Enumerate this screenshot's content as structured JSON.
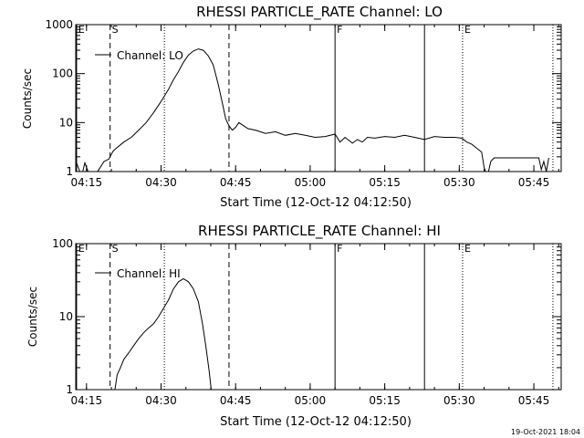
{
  "chart_data": [
    {
      "type": "line",
      "title": "RHESSI PARTICLE_RATE Channel: LO",
      "xlabel": "Start Time (12-Oct-12 04:12:50)",
      "ylabel": "Counts/sec",
      "yscale": "log",
      "xlim": [
        "04:12:50",
        "05:50:30"
      ],
      "ylim": [
        1,
        1000
      ],
      "x_ticks": [
        "04:15",
        "04:30",
        "04:45",
        "05:00",
        "05:15",
        "05:30",
        "05:45"
      ],
      "y_ticks": [
        "1",
        "10",
        "100",
        "1000"
      ],
      "legend": "Channel: LO",
      "legend_position": "top-left",
      "grid": false,
      "series": [
        {
          "color": "#000000",
          "points": [
            [
              "04:13:00",
              1.5
            ],
            [
              "04:14:00",
              0.8
            ],
            [
              "04:14:40",
              1.5
            ],
            [
              "04:15:30",
              0.9
            ],
            [
              "04:16:30",
              0.8
            ],
            [
              "04:17:30",
              1.1
            ],
            [
              "04:18:30",
              1.6
            ],
            [
              "04:19:30",
              1.8
            ],
            [
              "04:20:20",
              2.6
            ],
            [
              "04:21:00",
              3.0
            ],
            [
              "04:22:30",
              4.0
            ],
            [
              "04:24:00",
              5.0
            ],
            [
              "04:25:30",
              7.0
            ],
            [
              "04:27:00",
              10
            ],
            [
              "04:28:30",
              16
            ],
            [
              "04:30:00",
              27
            ],
            [
              "04:31:30",
              48
            ],
            [
              "04:32:30",
              75
            ],
            [
              "04:33:30",
              110
            ],
            [
              "04:34:30",
              170
            ],
            [
              "04:35:30",
              240
            ],
            [
              "04:36:30",
              290
            ],
            [
              "04:37:30",
              320
            ],
            [
              "04:38:30",
              300
            ],
            [
              "04:39:30",
              230
            ],
            [
              "04:40:30",
              150
            ],
            [
              "04:41:30",
              60
            ],
            [
              "04:42:20",
              25
            ],
            [
              "04:43:00",
              12
            ],
            [
              "04:43:40",
              8.5
            ],
            [
              "04:44:20",
              7.0
            ],
            [
              "04:45:00",
              8.0
            ],
            [
              "04:45:40",
              10
            ],
            [
              "04:46:20",
              9.0
            ],
            [
              "04:47:30",
              7.5
            ],
            [
              "04:49:00",
              7.0
            ],
            [
              "04:51:00",
              6.0
            ],
            [
              "04:53:00",
              6.5
            ],
            [
              "04:55:00",
              5.5
            ],
            [
              "04:57:00",
              6.0
            ],
            [
              "04:59:00",
              5.5
            ],
            [
              "05:01:00",
              5.0
            ],
            [
              "05:03:00",
              5.2
            ],
            [
              "05:05:00",
              5.8
            ],
            [
              "05:06:00",
              4.0
            ],
            [
              "05:07:00",
              5.0
            ],
            [
              "05:08:30",
              3.8
            ],
            [
              "05:09:30",
              4.5
            ],
            [
              "05:10:30",
              4.0
            ],
            [
              "05:11:30",
              5.0
            ],
            [
              "05:13:00",
              4.8
            ],
            [
              "05:15:00",
              5.2
            ],
            [
              "05:17:00",
              5.0
            ],
            [
              "05:19:00",
              5.5
            ],
            [
              "05:21:00",
              5.0
            ],
            [
              "05:23:00",
              4.5
            ],
            [
              "05:25:00",
              5.2
            ],
            [
              "05:27:00",
              5.0
            ],
            [
              "05:29:00",
              5.0
            ],
            [
              "05:30:30",
              4.8
            ],
            [
              "05:31:30",
              4.0
            ],
            [
              "05:32:30",
              3.6
            ],
            [
              "05:33:30",
              3.0
            ],
            [
              "05:34:30",
              2.5
            ],
            [
              "05:35:00",
              1.2
            ],
            [
              "05:35:40",
              0.8
            ],
            [
              "05:36:20",
              1.6
            ],
            [
              "05:37:00",
              1.9
            ],
            [
              "05:46:00",
              1.9
            ],
            [
              "05:46:30",
              1.1
            ],
            [
              "05:47:00",
              1.6
            ],
            [
              "05:47:30",
              1.0
            ],
            [
              "05:48:00",
              1.9
            ]
          ]
        }
      ]
    },
    {
      "type": "line",
      "title": "RHESSI PARTICLE_RATE Channel: HI",
      "xlabel": "Start Time (12-Oct-12 04:12:50)",
      "ylabel": "Counts/sec",
      "yscale": "log",
      "xlim": [
        "04:12:50",
        "05:50:30"
      ],
      "ylim": [
        1,
        100
      ],
      "x_ticks": [
        "04:15",
        "04:30",
        "04:45",
        "05:00",
        "05:15",
        "05:30",
        "05:45"
      ],
      "y_ticks": [
        "1",
        "10",
        "100"
      ],
      "legend": "Channel: HI",
      "legend_position": "top-left",
      "grid": false,
      "series": [
        {
          "color": "#000000",
          "points": [
            [
              "04:20:30",
              0.8
            ],
            [
              "04:21:10",
              1.6
            ],
            [
              "04:21:50",
              2.0
            ],
            [
              "04:22:30",
              2.6
            ],
            [
              "04:23:30",
              3.2
            ],
            [
              "04:24:30",
              4.0
            ],
            [
              "04:25:30",
              5.0
            ],
            [
              "04:26:30",
              6.0
            ],
            [
              "04:27:30",
              7.0
            ],
            [
              "04:28:30",
              8.0
            ],
            [
              "04:29:30",
              10
            ],
            [
              "04:30:30",
              13
            ],
            [
              "04:31:30",
              17
            ],
            [
              "04:32:30",
              24
            ],
            [
              "04:33:30",
              30
            ],
            [
              "04:34:30",
              33
            ],
            [
              "04:35:30",
              30
            ],
            [
              "04:36:30",
              24
            ],
            [
              "04:37:30",
              16
            ],
            [
              "04:38:20",
              8.0
            ],
            [
              "04:39:00",
              4.0
            ],
            [
              "04:39:40",
              1.8
            ],
            [
              "04:40:10",
              0.9
            ]
          ]
        }
      ]
    }
  ],
  "markers": [
    {
      "time": "04:13:00",
      "label": "E",
      "style": "solid"
    },
    {
      "time": "04:19:45",
      "label": "S",
      "style": "dashed"
    },
    {
      "time": "04:30:40",
      "label": "",
      "style": "dotted"
    },
    {
      "time": "04:43:40",
      "label": "",
      "style": "dashed"
    },
    {
      "time": "05:05:00",
      "label": "F",
      "style": "solid"
    },
    {
      "time": "05:23:00",
      "label": "",
      "style": "solid"
    },
    {
      "time": "05:30:40",
      "label": "E",
      "style": "dotted"
    },
    {
      "time": "05:48:50",
      "label": "",
      "style": "dotted"
    }
  ],
  "footer": {
    "date_stamp": "19-Oct-2021 18:04"
  }
}
